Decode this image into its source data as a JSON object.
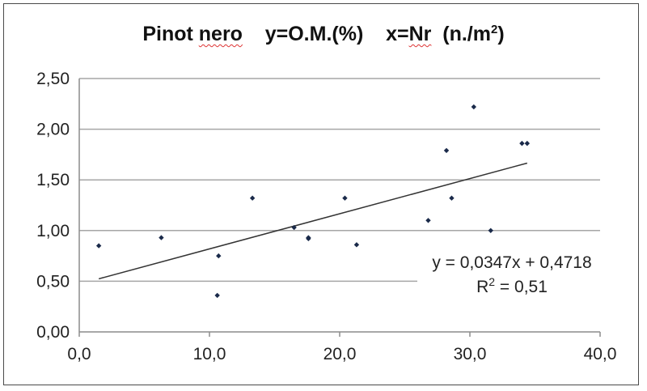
{
  "title": {
    "p1": "Pinot ",
    "p2": "nero",
    "p3": "    y=O.M.(%)    x=",
    "p4": "Nr",
    "p5": "  (n./m",
    "sup": "2",
    "p6": ")"
  },
  "chart_data": {
    "type": "scatter",
    "title": "Pinot nero    y=O.M.(%)    x=Nr  (n./m2)",
    "xlim": [
      0,
      40
    ],
    "ylim": [
      0,
      2.5
    ],
    "x_ticks": [
      0,
      10,
      20,
      30,
      40
    ],
    "x_tick_labels": [
      "0,0",
      "10,0",
      "20,0",
      "30,0",
      "40,0"
    ],
    "y_ticks": [
      0,
      0.5,
      1.0,
      1.5,
      2.0,
      2.5
    ],
    "y_tick_labels": [
      "0,00",
      "0,50",
      "1,00",
      "1,50",
      "2,00",
      "2,50"
    ],
    "grid": "horizontal",
    "points": [
      {
        "x": 1.5,
        "y": 0.85
      },
      {
        "x": 6.3,
        "y": 0.93
      },
      {
        "x": 10.6,
        "y": 0.36
      },
      {
        "x": 10.7,
        "y": 0.75
      },
      {
        "x": 13.3,
        "y": 1.32
      },
      {
        "x": 16.5,
        "y": 1.03
      },
      {
        "x": 17.6,
        "y": 0.93
      },
      {
        "x": 17.6,
        "y": 0.92
      },
      {
        "x": 20.4,
        "y": 1.32
      },
      {
        "x": 21.3,
        "y": 0.86
      },
      {
        "x": 26.8,
        "y": 1.1
      },
      {
        "x": 28.2,
        "y": 1.79
      },
      {
        "x": 28.6,
        "y": 1.32
      },
      {
        "x": 30.3,
        "y": 2.22
      },
      {
        "x": 31.6,
        "y": 1.0
      },
      {
        "x": 34.0,
        "y": 1.86
      },
      {
        "x": 34.4,
        "y": 1.86
      }
    ],
    "trendline": {
      "type": "linear",
      "slope": 0.0347,
      "intercept": 0.4718,
      "x_range": [
        1.5,
        34.4
      ],
      "equation": "y = 0,0347x + 0,4718",
      "r2_prefix": "R",
      "r2_sup": "2",
      "r2_suffix": " = 0,51"
    },
    "colors": {
      "points": "#1a2a4a",
      "trendline": "#333333",
      "grid": "#a6a6a6"
    }
  }
}
